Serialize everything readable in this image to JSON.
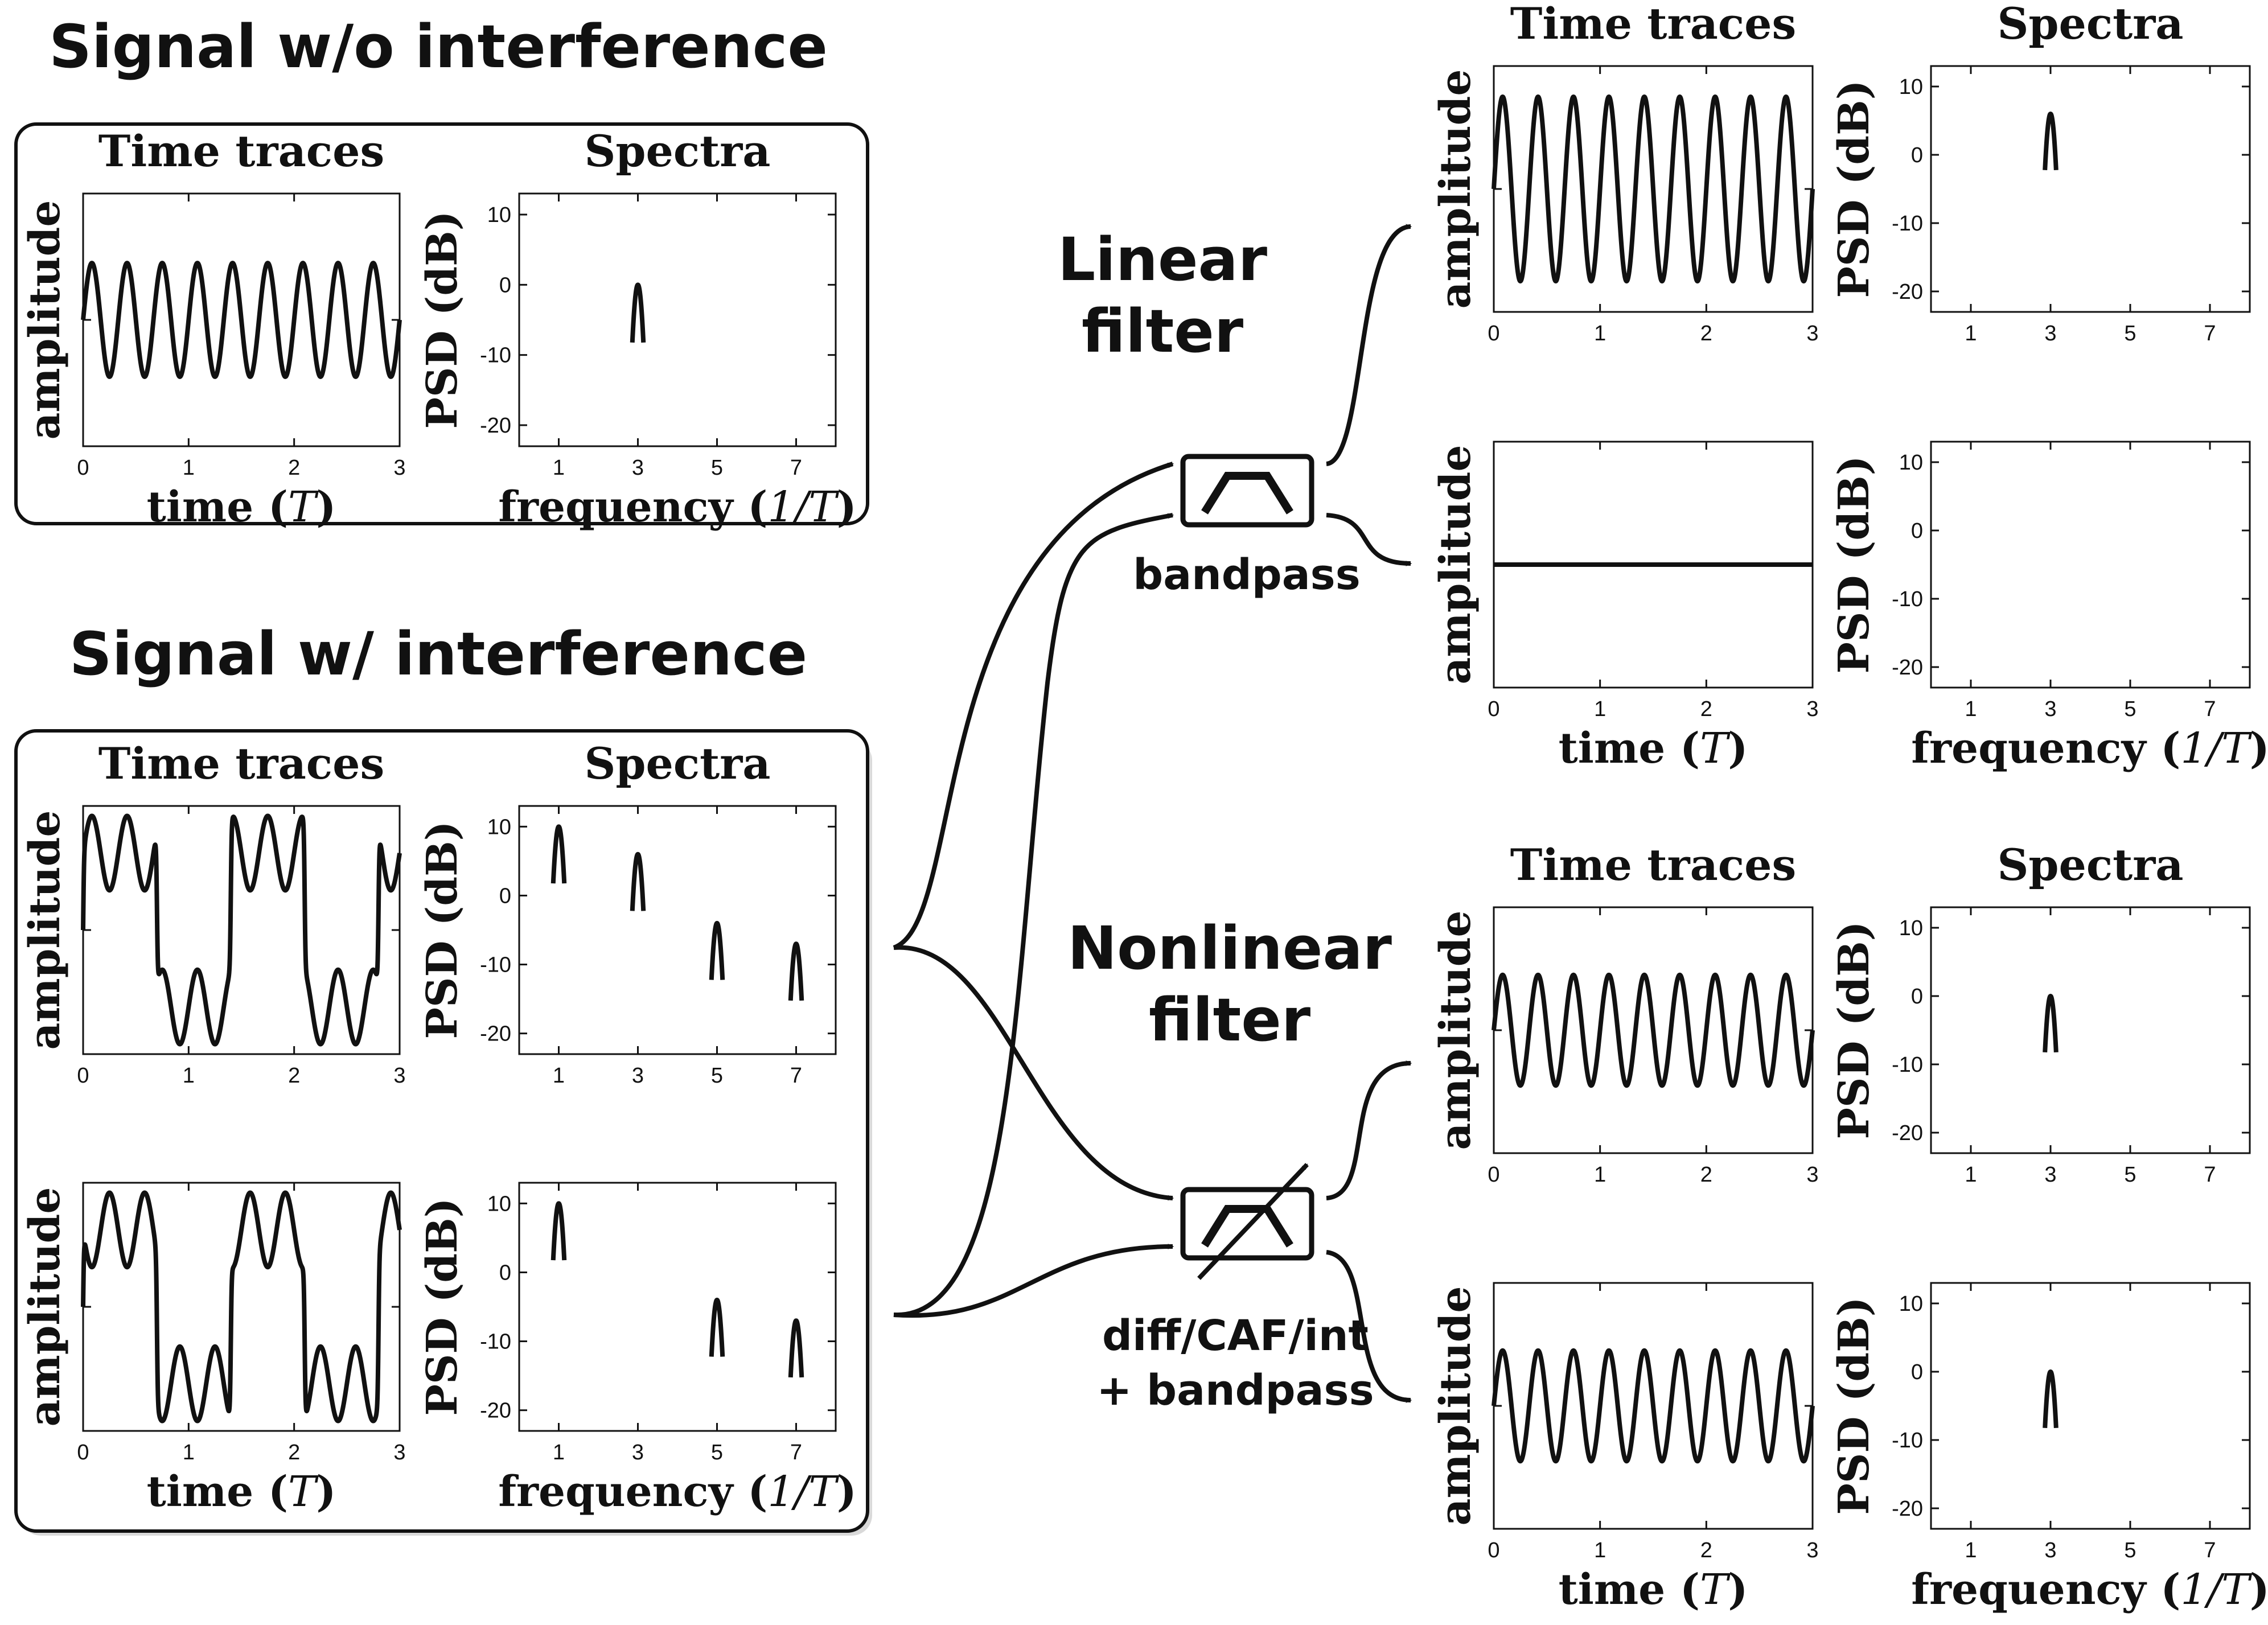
{
  "headings": {
    "without": "Signal w/o interference",
    "with": "Signal w/ interference",
    "linear": [
      "Linear",
      "filter"
    ],
    "nonlinear": [
      "Nonlinear",
      "filter"
    ]
  },
  "panel_titles": {
    "time": "Time traces",
    "spectra": "Spectra"
  },
  "axis_labels": {
    "amplitude": "amplitude",
    "psd": "PSD (dB)",
    "time_prefix": "time (",
    "time_unit": "T",
    "time_suffix": ")",
    "freq_prefix": "frequency (",
    "freq_unit": "1/T",
    "freq_suffix": ")"
  },
  "filter_labels": {
    "bandpass": "bandpass",
    "nonlinear_line1": "diff/CAF/int",
    "nonlinear_line2": "+ bandpass"
  },
  "axes_ranges": {
    "time": {
      "xlim": [
        0,
        3
      ],
      "xticks": [
        "0",
        "1",
        "2",
        "3"
      ]
    },
    "spectrum": {
      "xlim": [
        0,
        8
      ],
      "ylim": [
        -23,
        13
      ],
      "xticks": [
        "1",
        "3",
        "5",
        "7"
      ],
      "yticks": [
        "10",
        "0",
        "-10",
        "-20"
      ]
    }
  },
  "chart_data": [
    {
      "type": "line",
      "id": "clean-time",
      "x_range": [
        0,
        3
      ],
      "waveform": "sine",
      "frequency": 3,
      "amplitude": 0.45
    },
    {
      "type": "bar",
      "id": "clean-spectrum",
      "peaks": [
        {
          "f": 3,
          "psd_db": 0
        }
      ]
    },
    {
      "type": "line",
      "id": "interf-time-1",
      "x_range": [
        0,
        3
      ],
      "waveform": "square+sine",
      "square_amplitude": 0.62,
      "sine_frequency": 3,
      "sine_amplitude": 0.3
    },
    {
      "type": "bar",
      "id": "interf-spectrum-1",
      "peaks": [
        {
          "f": 1,
          "psd_db": 10
        },
        {
          "f": 3,
          "psd_db": 6
        },
        {
          "f": 5,
          "psd_db": -4
        },
        {
          "f": 7,
          "psd_db": -7
        }
      ]
    },
    {
      "type": "line",
      "id": "interf-time-2",
      "x_range": [
        0,
        3
      ],
      "waveform": "square-sine",
      "square_amplitude": 0.62,
      "sine_frequency": 3,
      "sine_amplitude": 0.3
    },
    {
      "type": "bar",
      "id": "interf-spectrum-2",
      "peaks": [
        {
          "f": 1,
          "psd_db": 10
        },
        {
          "f": 5,
          "psd_db": -4
        },
        {
          "f": 7,
          "psd_db": -7
        }
      ]
    },
    {
      "type": "line",
      "id": "linear-out-time-1",
      "x_range": [
        0,
        3
      ],
      "waveform": "sine",
      "frequency": 3,
      "amplitude": 0.75
    },
    {
      "type": "bar",
      "id": "linear-out-spectrum-1",
      "peaks": [
        {
          "f": 3,
          "psd_db": 6
        }
      ]
    },
    {
      "type": "line",
      "id": "linear-out-time-2",
      "x_range": [
        0,
        3
      ],
      "waveform": "flat",
      "amplitude": 0
    },
    {
      "type": "bar",
      "id": "linear-out-spectrum-2",
      "peaks": []
    },
    {
      "type": "line",
      "id": "nonlinear-out-time-1",
      "x_range": [
        0,
        3
      ],
      "waveform": "sine",
      "frequency": 3,
      "amplitude": 0.45
    },
    {
      "type": "bar",
      "id": "nonlinear-out-spectrum-1",
      "peaks": [
        {
          "f": 3,
          "psd_db": 0
        }
      ]
    },
    {
      "type": "line",
      "id": "nonlinear-out-time-2",
      "x_range": [
        0,
        3
      ],
      "waveform": "sine",
      "frequency": 3,
      "amplitude": 0.45
    },
    {
      "type": "bar",
      "id": "nonlinear-out-spectrum-2",
      "peaks": [
        {
          "f": 3,
          "psd_db": 0
        }
      ]
    }
  ]
}
